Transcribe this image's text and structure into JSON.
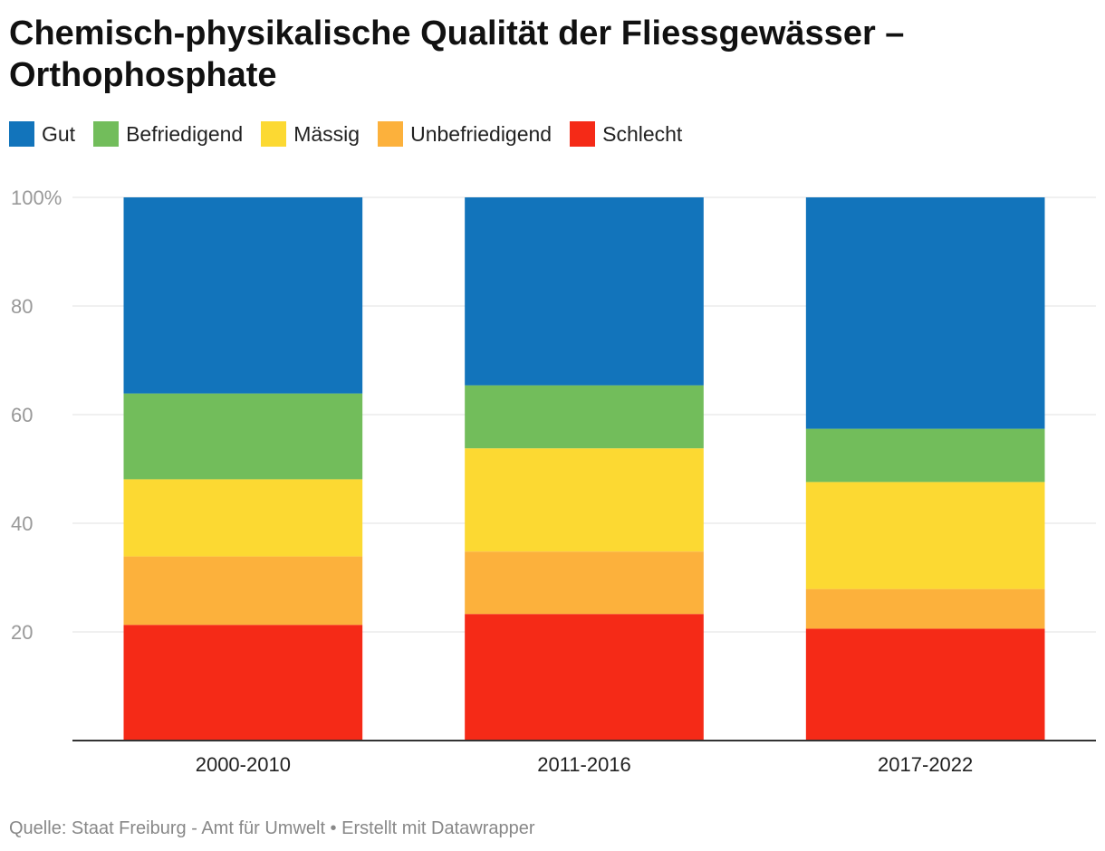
{
  "title": "Chemisch-physikalische Qualität der Fliessgewässer – Orthophosphate",
  "footer": "Quelle: Staat Freiburg - Amt für Umwelt • Erstellt mit Datawrapper",
  "colors": {
    "gut": "#1274bb",
    "befriedigend": "#72bd5b",
    "maessig": "#fcd932",
    "unbefriedigend": "#fcb13c",
    "schlecht": "#f52a17"
  },
  "chart_data": {
    "type": "bar",
    "stacked": true,
    "title": "Chemisch-physikalische Qualität der Fliessgewässer – Orthophosphate",
    "xlabel": "",
    "ylabel": "",
    "ylim": [
      0,
      100
    ],
    "yticks": [
      20,
      40,
      60,
      80,
      100
    ],
    "ytick_labels": [
      "20",
      "40",
      "60",
      "80",
      "100%"
    ],
    "categories": [
      "2000-2010",
      "2011-2016",
      "2017-2022"
    ],
    "series": [
      {
        "name": "Schlecht",
        "color": "#f52a17",
        "values": [
          21.3,
          23.3,
          20.6
        ]
      },
      {
        "name": "Unbefriedigend",
        "color": "#fcb13c",
        "values": [
          12.6,
          11.5,
          7.3
        ]
      },
      {
        "name": "Mässig",
        "color": "#fcd932",
        "values": [
          14.2,
          19.0,
          19.7
        ]
      },
      {
        "name": "Befriedigend",
        "color": "#72bd5b",
        "values": [
          15.8,
          11.6,
          9.8
        ]
      },
      {
        "name": "Gut",
        "color": "#1274bb",
        "values": [
          36.1,
          34.6,
          42.6
        ]
      }
    ],
    "legend": [
      "Gut",
      "Befriedigend",
      "Mässig",
      "Unbefriedigend",
      "Schlecht"
    ],
    "legend_position": "top-left",
    "grid": true
  }
}
